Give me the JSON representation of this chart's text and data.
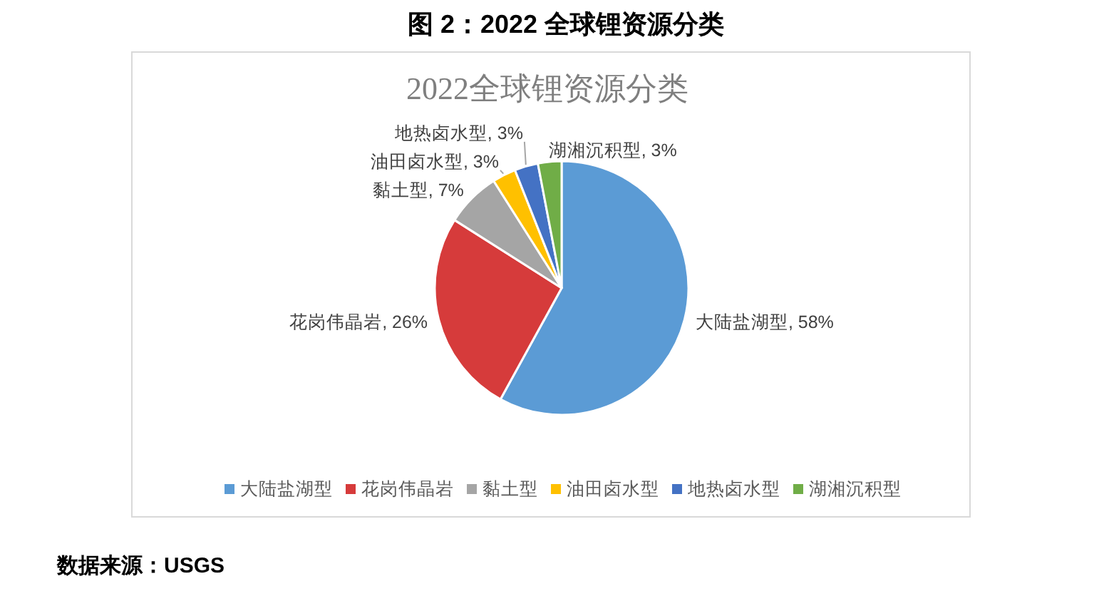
{
  "chart_data": {
    "type": "pie",
    "title": "图 2：2022 全球锂资源分类",
    "subtitle": "2022全球锂资源分类",
    "categories": [
      "大陆盐湖型",
      "花岗伟晶岩",
      "黏土型",
      "油田卤水型",
      "地热卤水型",
      "湖湘沉积型"
    ],
    "values": [
      58,
      26,
      7,
      3,
      3,
      3
    ],
    "value_labels": [
      "大陆盐湖型, 58%",
      "花岗伟晶岩, 26%",
      "黏土型, 7%",
      "油田卤水型, 3%",
      "地热卤水型, 3%",
      "湖湘沉积型, 3%"
    ],
    "colors": [
      "#5b9bd5",
      "#d63b3b",
      "#a5a5a5",
      "#ffc000",
      "#4472c4",
      "#70ad47"
    ],
    "legend": "bottom",
    "annotations": [
      "数据来源：USGS"
    ]
  }
}
